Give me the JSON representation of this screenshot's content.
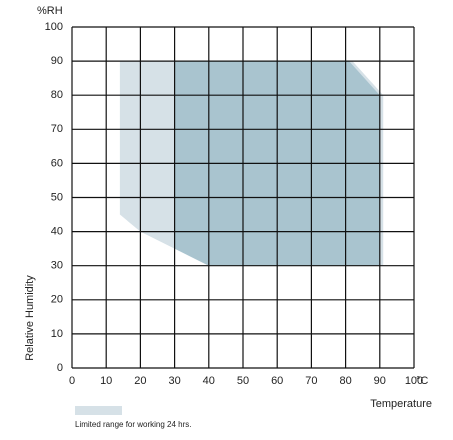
{
  "chart_data": {
    "type": "polygon",
    "x_unit": "°C",
    "y_unit": "%RH",
    "xlabel": "Temperature",
    "ylabel": "Relative Humidity",
    "xlim": [
      0,
      100
    ],
    "xticks": [
      0,
      10,
      20,
      30,
      40,
      50,
      60,
      70,
      80,
      90,
      100
    ],
    "ylim": [
      0,
      100
    ],
    "yticks": [
      0,
      10,
      20,
      30,
      40,
      50,
      60,
      70,
      80,
      90,
      100
    ],
    "grid": true,
    "series": [
      {
        "name": "Limited range for working 24 hrs.",
        "color": "#d6e1e7",
        "x": [
          14,
          82,
          91,
          91,
          40,
          20,
          14
        ],
        "values": [
          90,
          90,
          80,
          30,
          30,
          40,
          45
        ]
      },
      {
        "color": "#a9c4cf",
        "x": [
          30,
          81,
          90,
          90,
          40,
          30
        ],
        "values": [
          90,
          90,
          80,
          30,
          30,
          35
        ]
      }
    ]
  }
}
